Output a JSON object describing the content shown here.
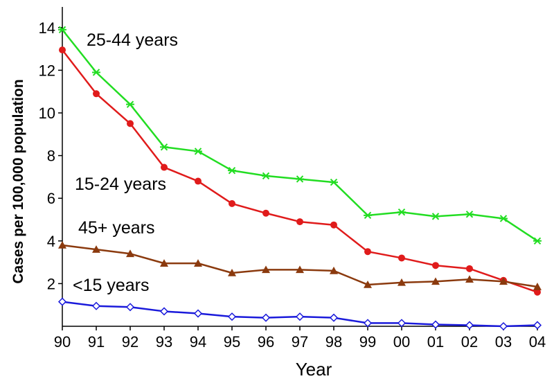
{
  "chart_data": {
    "type": "line",
    "xlabel": "Year",
    "ylabel": "Cases per 100,000 population",
    "categories": [
      "90",
      "91",
      "92",
      "93",
      "94",
      "95",
      "96",
      "97",
      "98",
      "99",
      "00",
      "01",
      "02",
      "03",
      "04"
    ],
    "ylim": [
      0,
      15
    ],
    "yticks": [
      2,
      4,
      6,
      8,
      10,
      12,
      14
    ],
    "grid": false,
    "series": [
      {
        "name": "25-44 years",
        "color": "#22dd22",
        "marker": "asterisk",
        "values": [
          13.9,
          11.9,
          10.4,
          8.4,
          8.2,
          7.3,
          7.05,
          6.9,
          6.75,
          5.2,
          5.35,
          5.15,
          5.25,
          5.05,
          4.0
        ]
      },
      {
        "name": "15-24 years",
        "color": "#e01b1b",
        "marker": "circle",
        "values": [
          12.95,
          10.9,
          9.5,
          7.45,
          6.8,
          5.75,
          5.3,
          4.9,
          4.75,
          3.5,
          3.2,
          2.85,
          2.7,
          2.15,
          1.6
        ]
      },
      {
        "name": "45+ years",
        "color": "#8b3a0e",
        "marker": "triangle",
        "values": [
          3.8,
          3.6,
          3.4,
          2.95,
          2.95,
          2.5,
          2.65,
          2.65,
          2.6,
          1.95,
          2.05,
          2.1,
          2.2,
          2.1,
          1.85
        ]
      },
      {
        "name": "<15 years",
        "color": "#1a1adb",
        "marker": "diamond",
        "values": [
          1.15,
          0.95,
          0.9,
          0.7,
          0.6,
          0.45,
          0.4,
          0.45,
          0.4,
          0.15,
          0.15,
          0.08,
          0.05,
          0.0,
          0.05
        ]
      }
    ]
  }
}
